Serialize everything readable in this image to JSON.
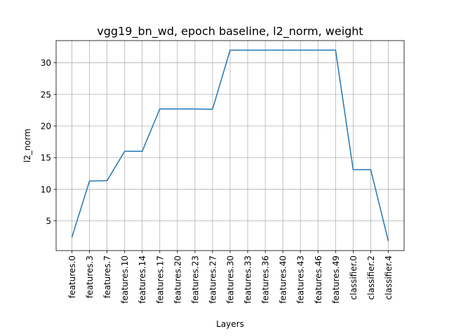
{
  "chart_data": {
    "type": "line",
    "title": "vgg19_bn_wd, epoch baseline, l2_norm, weight",
    "xlabel": "Layers",
    "ylabel": "l2_norm",
    "categories": [
      "features.0",
      "features.3",
      "features.7",
      "features.10",
      "features.14",
      "features.17",
      "features.20",
      "features.23",
      "features.27",
      "features.30",
      "features.33",
      "features.36",
      "features.40",
      "features.43",
      "features.46",
      "features.49",
      "classifier.0",
      "classifier.2",
      "classifier.4"
    ],
    "series": [
      {
        "color": "#1f77b4",
        "values": [
          2.4,
          11.3,
          11.35,
          16.0,
          16.0,
          22.7,
          22.7,
          22.7,
          22.65,
          32.0,
          32.0,
          32.0,
          32.0,
          32.0,
          32.0,
          32.0,
          13.1,
          13.1,
          1.8
        ]
      }
    ],
    "yticks": [
      5,
      10,
      15,
      20,
      25,
      30
    ],
    "ylim": [
      0.29,
      33.51
    ],
    "grid": true
  }
}
